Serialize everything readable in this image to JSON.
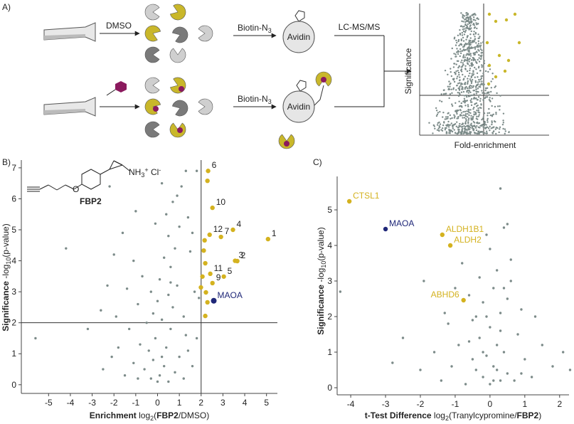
{
  "panel_a": {
    "label": "A)",
    "treatment": "DMSO",
    "click_top": [
      "Biotin-N",
      "3"
    ],
    "click_bottom": [
      "Biotin-N",
      "3"
    ],
    "avidin_top": "Avidin",
    "avidin_bottom": "Avidin",
    "analysis": "LC-MS/MS",
    "inset_ylabel": "Significance",
    "inset_xlabel": "Fold-enrichment"
  },
  "chart_data": [
    {
      "type": "scatter",
      "panel_label": "B)",
      "structure": {
        "name": "FBP2",
        "salt": [
          "NH",
          "3",
          "+",
          " Cl",
          "-"
        ]
      },
      "xlabel": [
        "Enrichment",
        " log",
        "2",
        "(",
        "FBP2",
        "/DMSO)"
      ],
      "ylabel": [
        "Significance",
        " -log",
        "10",
        "(p-value)"
      ],
      "xlim": [
        -6.25,
        5.5
      ],
      "ylim": [
        -0.28,
        7.25
      ],
      "xticks": [
        -5,
        -4,
        -3,
        -2,
        -1,
        0,
        1,
        2,
        3,
        4,
        5
      ],
      "yticks": [
        0,
        1,
        2,
        3,
        4,
        5,
        6,
        7
      ],
      "thresholds": {
        "x": 2,
        "y": 2
      },
      "series": [
        {
          "color": "#7c8b89",
          "size": 1.7,
          "x": [
            -0.3,
            0.1,
            0.5,
            -0.2,
            0.3,
            0.8,
            -0.6,
            1.0,
            0.4,
            -0.1,
            0.6,
            -0.4,
            0.2,
            0.7,
            -0.2,
            0.5,
            0.9,
            0.1,
            0.6,
            1.2,
            -0.8,
            -1.1,
            1.4,
            1.6,
            -1.5,
            0.3,
            0.8,
            0.5,
            1.0,
            0.4,
            0.7,
            1.1,
            1.3,
            0.9,
            -0.5,
            -0.9,
            -1.3,
            -1.8,
            -2.1,
            -2.5,
            -1.9,
            -1.4,
            -0.7,
            -1.1,
            -2.3,
            -2.0,
            -2.6,
            -3.2,
            -4.2,
            -5.6,
            1.8,
            1.7,
            1.5,
            1.9,
            1.2,
            0.0,
            -0.9,
            0.2,
            1.3,
            0.0,
            -0.3,
            1.4,
            0.6,
            -1.6,
            0.2,
            1.8,
            -0.1,
            -2.2,
            -1.0,
            1.6
          ],
          "values": [
            0.2,
            0.3,
            0.1,
            0.8,
            0.6,
            0.4,
            0.5,
            0.9,
            1.2,
            1.5,
            1.8,
            1.1,
            2.1,
            2.5,
            2.3,
            2.9,
            3.2,
            3.4,
            3.8,
            2.2,
            1.3,
            0.7,
            1.1,
            0.6,
            0.3,
            4.1,
            4.4,
            4.8,
            5.1,
            5.5,
            5.9,
            6.4,
            6.9,
            6.1,
            2.0,
            2.6,
            1.8,
            1.2,
            0.9,
            0.5,
            2.2,
            3.1,
            3.5,
            4.0,
            3.2,
            4.2,
            2.4,
            1.8,
            4.4,
            1.5,
            1.5,
            3.0,
            4.3,
            2.8,
            0.2,
            0.1,
            0.2,
            0.9,
            1.6,
            2.7,
            3.0,
            5.4,
            3.3,
            4.9,
            6.5,
            6.9,
            5.2,
            6.4,
            5.6,
            4.9
          ]
        },
        {
          "color": "#d4b21f",
          "label_color": "#222222",
          "size": 3.2,
          "x": [
            2.32,
            2.29,
            2.52,
            3.46,
            5.07,
            2.39,
            2.91,
            2.16,
            2.12,
            3.56,
            3.66,
            2.19,
            2.42,
            2.06,
            3.04,
            2.52,
            1.99,
            2.22,
            2.29,
            2.19
          ],
          "values": [
            6.9,
            6.58,
            5.71,
            5.0,
            4.7,
            4.84,
            4.77,
            4.66,
            4.33,
            4.0,
            3.99,
            3.92,
            3.58,
            3.49,
            3.49,
            3.28,
            3.14,
            2.98,
            2.66,
            2.22
          ],
          "labels": [
            "6",
            null,
            "10",
            "4",
            "1",
            "12",
            "7",
            null,
            null,
            "3",
            "2",
            null,
            "11",
            null,
            "5",
            "9",
            null,
            null,
            null,
            null
          ]
        },
        {
          "color": "#1f2778",
          "label_color": "#1f2778",
          "size": 4,
          "x": [
            2.58
          ],
          "values": [
            2.71
          ],
          "labels": [
            "MAOA"
          ]
        }
      ]
    },
    {
      "type": "scatter",
      "panel_label": "C)",
      "xlabel": [
        "t-Test Difference",
        " log",
        "2",
        "(Tranylcypromine/",
        "FBP2",
        ")"
      ],
      "ylabel": [
        "Significance",
        " -log",
        "10",
        "(p-value)"
      ],
      "xlim": [
        -4.39,
        2.27
      ],
      "ylim": [
        -0.2,
        5.94
      ],
      "xticks": [
        -4,
        -3,
        -2,
        -1,
        0,
        1,
        2
      ],
      "yticks": [
        0,
        1,
        2,
        3,
        4,
        5
      ],
      "series": [
        {
          "color": "#7c8b89",
          "size": 1.7,
          "x": [
            0.0,
            -0.2,
            0.3,
            0.1,
            -0.4,
            0.5,
            -0.1,
            0.2,
            -0.3,
            0.4,
            0.0,
            -0.5,
            0.3,
            -0.2,
            0.1,
            -0.6,
            0.5,
            -0.3,
            0.2,
            -0.8,
            0.6,
            0.8,
            1.0,
            1.2,
            -0.9,
            -1.1,
            -1.4,
            -1.2,
            0.9,
            -0.7,
            0.7,
            0.0,
            0.4,
            0.5,
            0.3,
            -0.1,
            -1.3,
            -1.6,
            -2.0,
            -2.8,
            -4.3,
            -1.9,
            1.5,
            1.8,
            2.1,
            2.3,
            1.3,
            0.6,
            -0.4,
            0.1,
            -0.2,
            0.3,
            -0.1,
            0.2,
            -0.5,
            0.4,
            -0.6,
            0.9,
            -1.0,
            -2.5
          ],
          "values": [
            0.1,
            0.3,
            0.2,
            0.6,
            0.5,
            0.4,
            0.9,
            1.2,
            1.4,
            1.0,
            1.7,
            1.9,
            2.1,
            2.4,
            2.8,
            2.6,
            2.5,
            3.1,
            3.3,
            3.5,
            3.0,
            1.5,
            0.8,
            0.3,
            1.2,
            0.6,
            0.2,
            1.8,
            2.2,
            0.1,
            0.2,
            3.9,
            4.5,
            4.6,
            5.6,
            4.3,
            2.1,
            1.0,
            0.5,
            0.7,
            2.7,
            3.0,
            1.2,
            0.6,
            1.0,
            0.5,
            2.0,
            3.6,
            2.0,
            0.2,
            1.0,
            1.6,
            2.0,
            0.5,
            0.8,
            2.8,
            1.3,
            0.4,
            2.8,
            1.4
          ]
        },
        {
          "color": "#d4b21f",
          "label_color": "#d4b21f",
          "size": 3.2,
          "x": [
            -4.04,
            -1.37,
            -1.14,
            -0.76
          ],
          "values": [
            5.24,
            4.3,
            4.0,
            2.46
          ],
          "labels": [
            "CTSL1",
            "ALDH1B1",
            "ALDH2",
            "ABHD6"
          ]
        },
        {
          "color": "#1f2778",
          "label_color": "#1f2778",
          "size": 3.2,
          "x": [
            -3.0
          ],
          "values": [
            4.46
          ],
          "labels": [
            "MAOA"
          ]
        }
      ]
    }
  ]
}
